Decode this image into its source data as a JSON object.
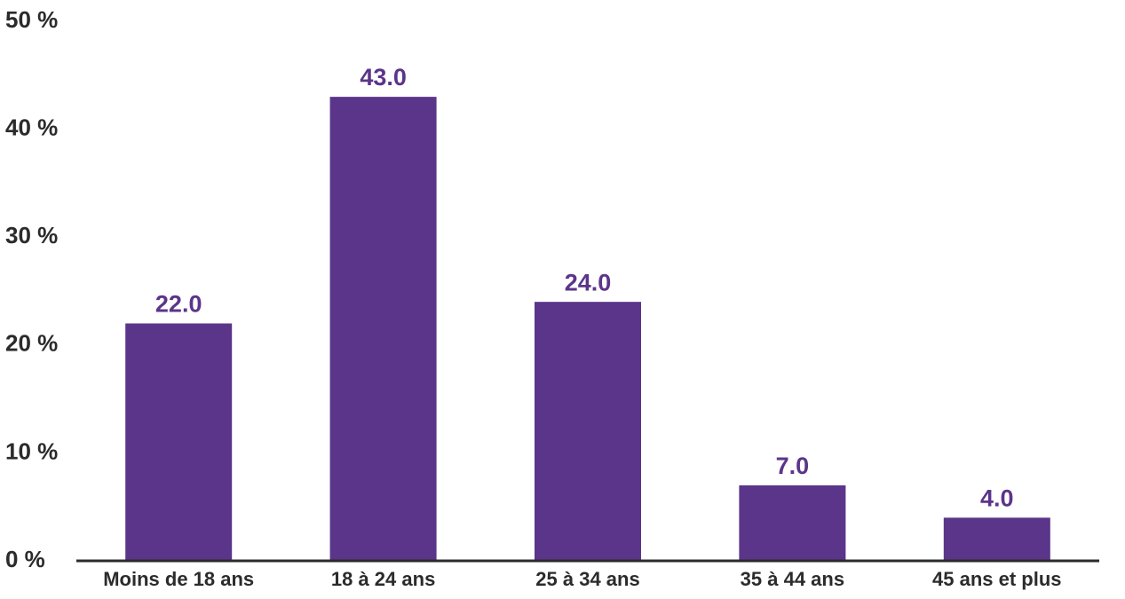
{
  "chart_data": {
    "type": "bar",
    "categories": [
      "Moins de 18 ans",
      "18 à 24 ans",
      "25 à 34 ans",
      "35 à 44 ans",
      "45 ans et plus"
    ],
    "values": [
      22,
      43,
      24,
      7,
      4
    ],
    "value_labels": [
      "22.0",
      "43.0",
      "24.0",
      "7.0",
      "4.0"
    ],
    "color": "#5b3589",
    "ylim": [
      0,
      50
    ],
    "yticks": [
      {
        "value": 0,
        "label": "0 %"
      },
      {
        "value": 10,
        "label": "10 %"
      },
      {
        "value": 20,
        "label": "20 %"
      },
      {
        "value": 30,
        "label": "30 %"
      },
      {
        "value": 40,
        "label": "40 %"
      },
      {
        "value": 50,
        "label": "50 %"
      }
    ],
    "grid": false
  }
}
